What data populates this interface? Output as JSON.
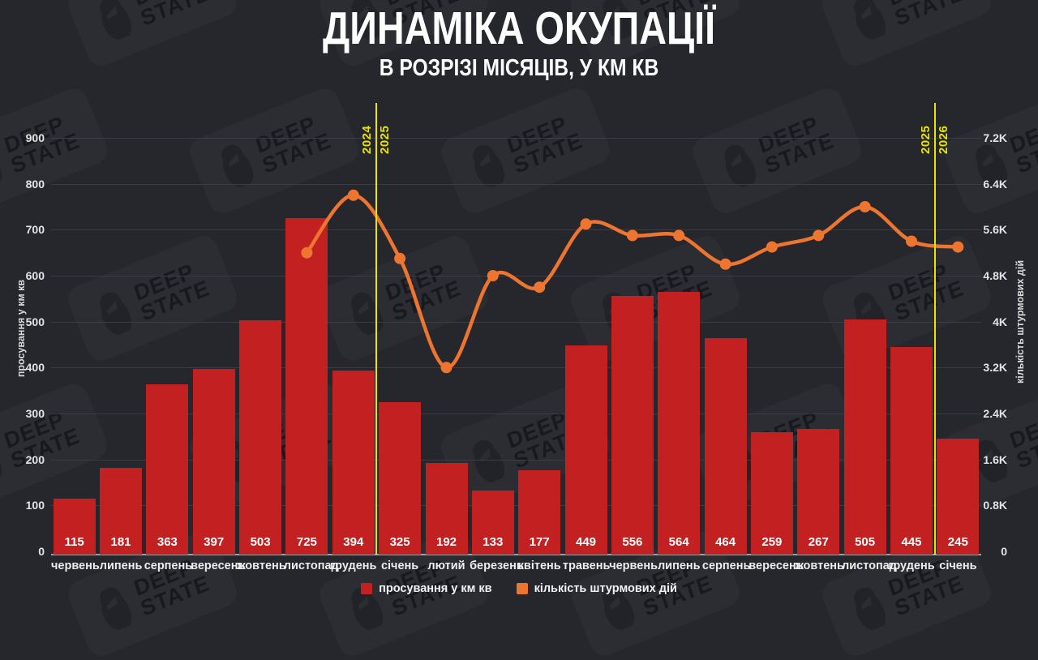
{
  "title": "ДИНАМІКА ОКУПАЦІЇ",
  "subtitle": "В РОЗРІЗІ МІСЯЦІВ, У КМ КВ",
  "watermark": {
    "icon": "deepstate-logo",
    "line1": "DEEP",
    "line2": "STATE"
  },
  "colors": {
    "background": "#25272c",
    "bar": "#c32121",
    "line": "#ee7530",
    "year_divider": "#e8e300",
    "grid": "#3a3d43",
    "axis_line": "#9d9da0",
    "text": "#ffffff"
  },
  "chart_data": {
    "type": "bar",
    "combo": "bar+line",
    "title": "ДИНАМІКА ОКУПАЦІЇ",
    "subtitle": "В РОЗРІЗІ МІСЯЦІВ, У КМ КВ",
    "categories": [
      "червень",
      "липень",
      "серпень",
      "вересень",
      "жовтень",
      "листопад",
      "грудень",
      "січень",
      "лютий",
      "березень",
      "квітень",
      "травень",
      "червень",
      "липень",
      "серпень",
      "вересень",
      "жовтень",
      "листопад",
      "грудень",
      "січень"
    ],
    "series": [
      {
        "name": "просування у км кв",
        "type": "bar",
        "axis": "left",
        "color": "#c32121",
        "values": [
          115,
          181,
          363,
          397,
          503,
          725,
          394,
          325,
          192,
          133,
          177,
          449,
          556,
          564,
          464,
          259,
          267,
          505,
          445,
          245
        ]
      },
      {
        "name": "кількість штурмових дій",
        "type": "line",
        "axis": "right",
        "color": "#ee7530",
        "start_index": 5,
        "values": [
          5200,
          6200,
          5100,
          3200,
          4800,
          4600,
          5700,
          5500,
          5500,
          5000,
          5300,
          5500,
          6000,
          5400,
          5300
        ]
      }
    ],
    "left_axis": {
      "label": "просування у км кв",
      "min": 0,
      "max": 900,
      "ticks": [
        "0",
        "100",
        "200",
        "300",
        "400",
        "500",
        "600",
        "700",
        "800",
        "900"
      ]
    },
    "right_axis": {
      "label": "кількість штурмових дій",
      "min": 0,
      "max": 7200,
      "ticks": [
        "0",
        "0.8K",
        "1.6K",
        "2.4K",
        "3.2K",
        "4K",
        "4.8K",
        "5.6K",
        "6.4K",
        "7.2K"
      ]
    },
    "year_dividers": [
      {
        "boundary_after_month_index": 6,
        "left_label": "2024",
        "right_label": "2025"
      },
      {
        "boundary_after_month_index": 18,
        "left_label": "2025",
        "right_label": "2026"
      }
    ],
    "grid": "horizontal",
    "legend_position": "bottom"
  },
  "legend": [
    {
      "label": "просування у км кв",
      "color": "#c32121"
    },
    {
      "label": "кількість штурмових дій",
      "color": "#ee7530"
    }
  ]
}
